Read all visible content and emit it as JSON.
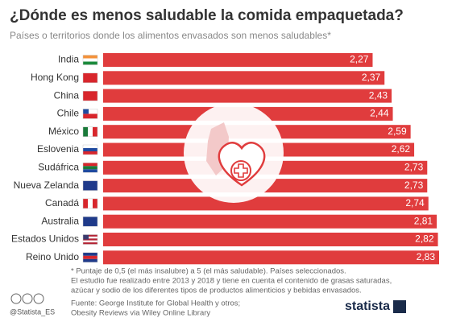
{
  "chart_data": {
    "type": "bar",
    "orientation": "horizontal",
    "title": "¿Dónde es menos saludable la comida empaquetada?",
    "subtitle": "Países o territorios donde los alimentos envasados son menos saludables*",
    "categories": [
      "India",
      "Hong Kong",
      "China",
      "Chile",
      "México",
      "Eslovenia",
      "Sudáfrica",
      "Nueva Zelanda",
      "Canadá",
      "Australia",
      "Estados Unidos",
      "Reino Unido"
    ],
    "values": [
      2.27,
      2.37,
      2.43,
      2.44,
      2.59,
      2.62,
      2.73,
      2.73,
      2.74,
      2.81,
      2.82,
      2.83
    ],
    "value_labels": [
      "2,27",
      "2,37",
      "2,43",
      "2,44",
      "2,59",
      "2,62",
      "2,73",
      "2,73",
      "2,74",
      "2,81",
      "2,82",
      "2,83"
    ],
    "color": "#e03c3d",
    "notes": [
      "* Puntaje de 0,5 (el más insalubre) a 5 (el más saludable). Países seleccionados.",
      "El estudio fue realizado entre 2013 y 2018 y tiene en cuenta el contenido de grasas saturadas,",
      "azúcar y sodio de los diferentes tipos de productos alimenticios y bebidas envasados."
    ],
    "source": [
      "Fuente: George Institute for Global Health y otros;",
      "Obesity Reviews via Wiley Online Library"
    ],
    "credit": "@Statista_ES",
    "brand": "statista"
  }
}
